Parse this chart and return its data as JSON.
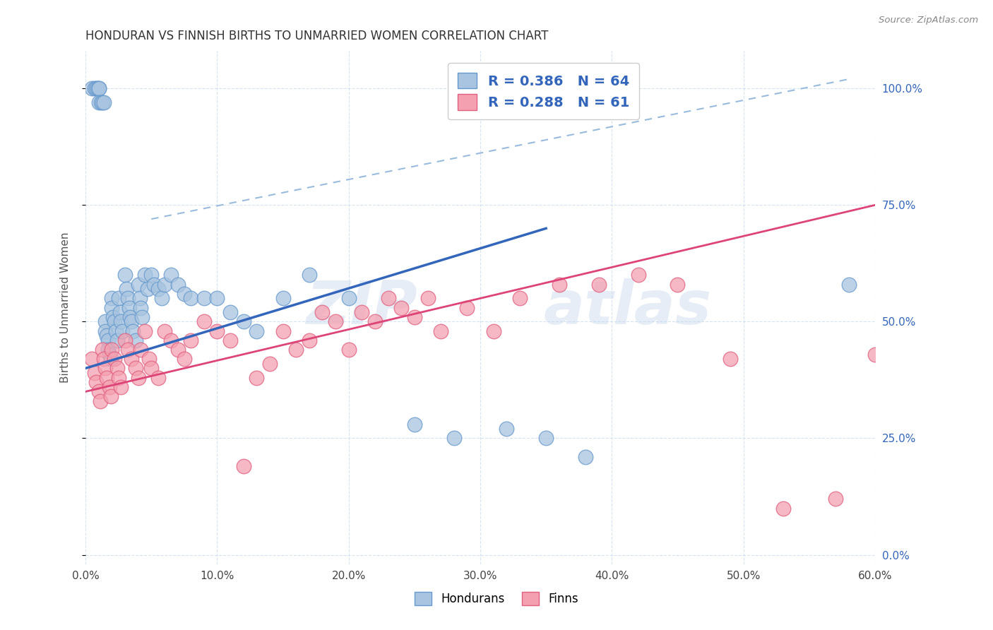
{
  "title": "HONDURAN VS FINNISH BIRTHS TO UNMARRIED WOMEN CORRELATION CHART",
  "source": "Source: ZipAtlas.com",
  "ylabel": "Births to Unmarried Women",
  "xlabel_ticks": [
    "0.0%",
    "10.0%",
    "20.0%",
    "30.0%",
    "40.0%",
    "50.0%",
    "60.0%"
  ],
  "xlabel_vals": [
    0.0,
    0.1,
    0.2,
    0.3,
    0.4,
    0.5,
    0.6
  ],
  "ylabel_ticks": [
    "0.0%",
    "25.0%",
    "50.0%",
    "75.0%",
    "100.0%"
  ],
  "ylabel_vals": [
    0.0,
    0.25,
    0.5,
    0.75,
    1.0
  ],
  "xlim": [
    0.0,
    0.6
  ],
  "ylim": [
    -0.02,
    1.08
  ],
  "honduran_color": "#a8c4e0",
  "finn_color": "#f4a0b0",
  "honduran_edge": "#6699cc",
  "finn_edge": "#e06080",
  "legend_R1": "0.386",
  "legend_N1": "64",
  "legend_R2": "0.288",
  "legend_N2": "61",
  "legend_label1": "Hondurans",
  "legend_label2": "Finns",
  "trend1_color": "#3366bb",
  "trend2_color": "#dd4477",
  "trend_dash_color": "#99bbdd",
  "watermark_zip": "ZIP",
  "watermark_atlas": "atlas",
  "honduran_x": [
    0.005,
    0.007,
    0.008,
    0.009,
    0.01,
    0.01,
    0.01,
    0.012,
    0.013,
    0.014,
    0.015,
    0.015,
    0.016,
    0.017,
    0.017,
    0.018,
    0.019,
    0.02,
    0.02,
    0.021,
    0.022,
    0.023,
    0.024,
    0.025,
    0.026,
    0.027,
    0.028,
    0.03,
    0.031,
    0.032,
    0.033,
    0.034,
    0.035,
    0.036,
    0.038,
    0.04,
    0.041,
    0.042,
    0.043,
    0.045,
    0.047,
    0.05,
    0.052,
    0.055,
    0.058,
    0.06,
    0.065,
    0.07,
    0.075,
    0.08,
    0.09,
    0.1,
    0.11,
    0.12,
    0.13,
    0.15,
    0.17,
    0.2,
    0.25,
    0.28,
    0.32,
    0.35,
    0.38,
    0.58
  ],
  "honduran_y": [
    1.0,
    1.0,
    1.0,
    1.0,
    1.0,
    1.0,
    0.97,
    0.97,
    0.97,
    0.97,
    0.5,
    0.48,
    0.47,
    0.46,
    0.44,
    0.43,
    0.42,
    0.55,
    0.53,
    0.51,
    0.5,
    0.48,
    0.46,
    0.55,
    0.52,
    0.5,
    0.48,
    0.6,
    0.57,
    0.55,
    0.53,
    0.51,
    0.5,
    0.48,
    0.46,
    0.58,
    0.55,
    0.53,
    0.51,
    0.6,
    0.57,
    0.6,
    0.58,
    0.57,
    0.55,
    0.58,
    0.6,
    0.58,
    0.56,
    0.55,
    0.55,
    0.55,
    0.52,
    0.5,
    0.48,
    0.55,
    0.6,
    0.55,
    0.28,
    0.25,
    0.27,
    0.25,
    0.21,
    0.58
  ],
  "finn_x": [
    0.005,
    0.007,
    0.008,
    0.01,
    0.011,
    0.013,
    0.014,
    0.015,
    0.016,
    0.018,
    0.019,
    0.02,
    0.022,
    0.024,
    0.025,
    0.027,
    0.03,
    0.032,
    0.035,
    0.038,
    0.04,
    0.042,
    0.045,
    0.048,
    0.05,
    0.055,
    0.06,
    0.065,
    0.07,
    0.075,
    0.08,
    0.09,
    0.1,
    0.11,
    0.12,
    0.13,
    0.14,
    0.15,
    0.16,
    0.17,
    0.18,
    0.19,
    0.2,
    0.21,
    0.22,
    0.23,
    0.24,
    0.25,
    0.26,
    0.27,
    0.29,
    0.31,
    0.33,
    0.36,
    0.39,
    0.42,
    0.45,
    0.49,
    0.53,
    0.57,
    0.6
  ],
  "finn_y": [
    0.42,
    0.39,
    0.37,
    0.35,
    0.33,
    0.44,
    0.42,
    0.4,
    0.38,
    0.36,
    0.34,
    0.44,
    0.42,
    0.4,
    0.38,
    0.36,
    0.46,
    0.44,
    0.42,
    0.4,
    0.38,
    0.44,
    0.48,
    0.42,
    0.4,
    0.38,
    0.48,
    0.46,
    0.44,
    0.42,
    0.46,
    0.5,
    0.48,
    0.46,
    0.19,
    0.38,
    0.41,
    0.48,
    0.44,
    0.46,
    0.52,
    0.5,
    0.44,
    0.52,
    0.5,
    0.55,
    0.53,
    0.51,
    0.55,
    0.48,
    0.53,
    0.48,
    0.55,
    0.58,
    0.58,
    0.6,
    0.58,
    0.42,
    0.1,
    0.12,
    0.43
  ]
}
